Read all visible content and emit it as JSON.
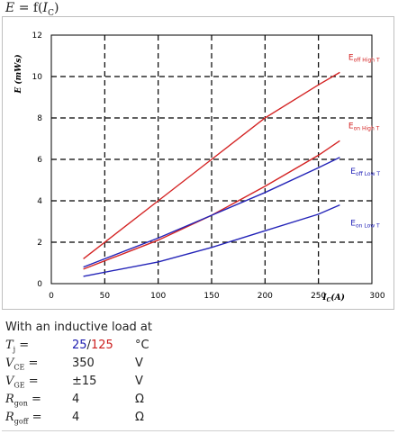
{
  "header": {
    "lhs": "E",
    "eq": "=",
    "fn_open": "f(",
    "var": "I",
    "var_sub": "C",
    "fn_close": ")"
  },
  "chart_data": {
    "type": "line",
    "xlabel_main": "I",
    "xlabel_sub": "C",
    "xlabel_unit": "(A)",
    "ylabel": "E (mWs)",
    "xlim": [
      0,
      300
    ],
    "ylim": [
      0,
      12
    ],
    "xticks": [
      0,
      50,
      100,
      150,
      200,
      250,
      300
    ],
    "yticks": [
      0,
      2,
      4,
      6,
      8,
      10,
      12
    ],
    "grid": "dashed",
    "series": [
      {
        "name": "Eoff High T",
        "main": "E",
        "sub": "off High T",
        "color": "#d42424",
        "x": [
          30,
          100,
          150,
          200,
          250,
          270
        ],
        "y": [
          1.2,
          4.0,
          6.0,
          8.0,
          9.6,
          10.2
        ]
      },
      {
        "name": "Eon High T",
        "main": "E",
        "sub": "on High T",
        "color": "#d42424",
        "x": [
          30,
          100,
          150,
          200,
          250,
          270
        ],
        "y": [
          0.7,
          2.1,
          3.3,
          4.7,
          6.2,
          6.9
        ]
      },
      {
        "name": "Eoff Low T",
        "main": "E",
        "sub": "off Low T",
        "color": "#2424b8",
        "x": [
          30,
          100,
          150,
          200,
          250,
          270
        ],
        "y": [
          0.8,
          2.2,
          3.3,
          4.4,
          5.6,
          6.1
        ]
      },
      {
        "name": "Eon Low T",
        "main": "E",
        "sub": "on Low T",
        "color": "#2424b8",
        "x": [
          30,
          100,
          150,
          200,
          250,
          270
        ],
        "y": [
          0.35,
          1.05,
          1.75,
          2.55,
          3.35,
          3.8
        ]
      }
    ]
  },
  "conditions": {
    "intro": "With an inductive load at",
    "rows": [
      {
        "sym": "T",
        "sub": "j",
        "eq": "=",
        "val_a": "25",
        "slash": "/",
        "val_b": "125",
        "unit": "°C"
      },
      {
        "sym": "V",
        "sub": "CE",
        "eq": "=",
        "val": "350",
        "unit": "V"
      },
      {
        "sym": "V",
        "sub": "GE",
        "eq": "=",
        "val": "±15",
        "unit": "V"
      },
      {
        "sym": "R",
        "sub": "gon",
        "eq": "=",
        "val": "4",
        "unit": "Ω"
      },
      {
        "sym": "R",
        "sub": "goff",
        "eq": "=",
        "val": "4",
        "unit": "Ω"
      }
    ]
  },
  "colors": {
    "red": "#d42424",
    "blue": "#2424b8",
    "grid": "#000000"
  }
}
